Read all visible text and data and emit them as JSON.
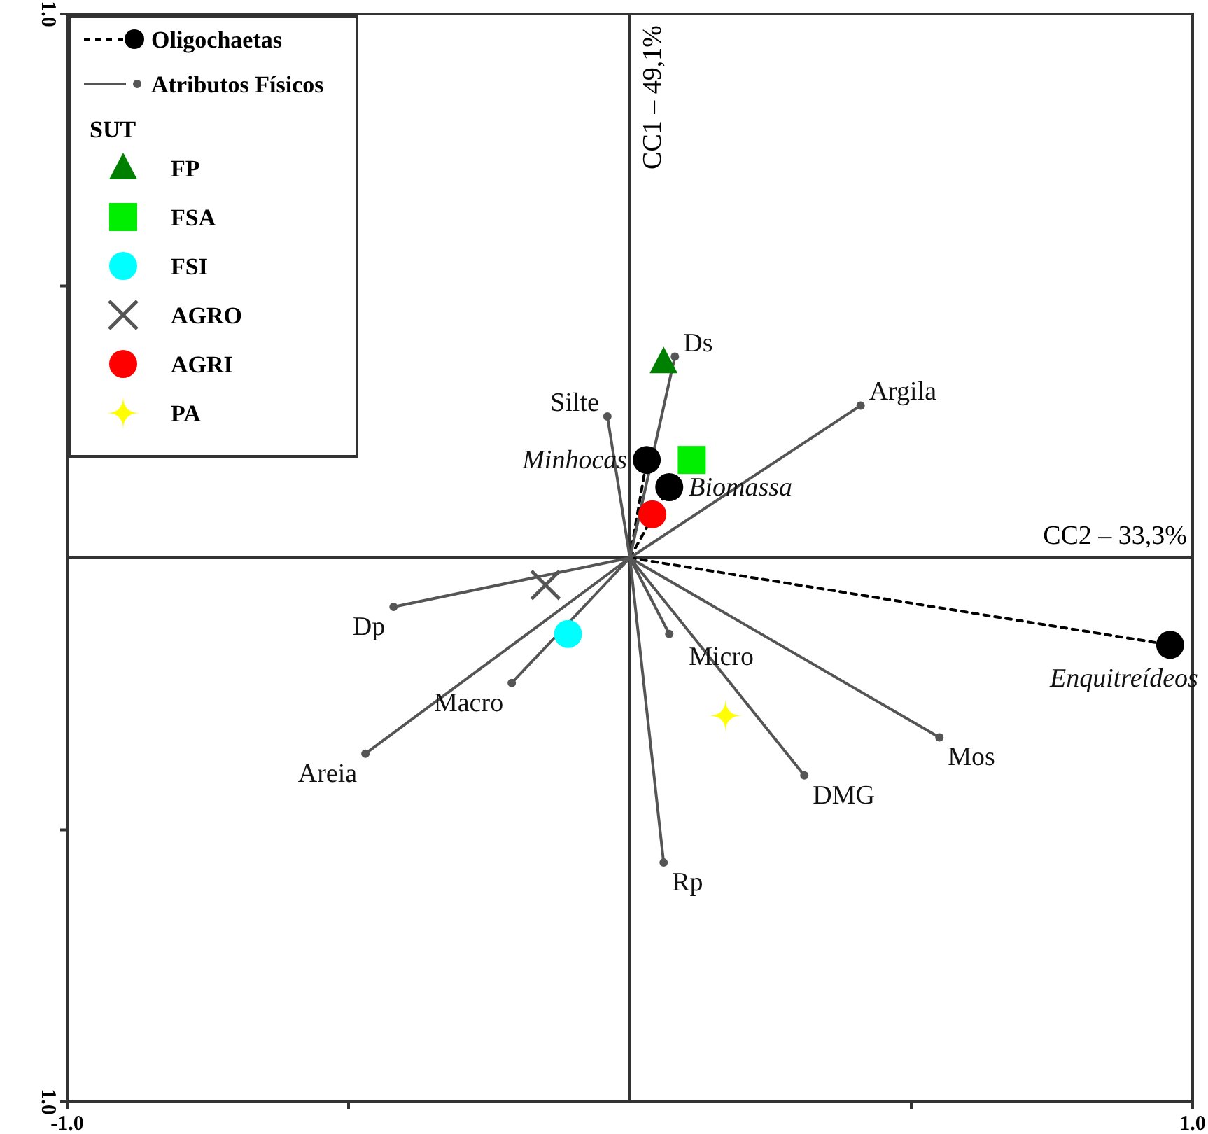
{
  "chart_data": {
    "type": "scatter",
    "xlabel": "CC2 – 33,3%",
    "ylabel": "CC1 – 49,1%",
    "xlim": [
      -1,
      1
    ],
    "ylim": [
      -1,
      1
    ],
    "xticks": [
      {
        "value": -1,
        "label": "-1.0"
      },
      {
        "value": -0.5,
        "label": null
      },
      {
        "value": 0.5,
        "label": null
      },
      {
        "value": 1,
        "label": "1.0"
      }
    ],
    "yticks": [
      {
        "value": -1,
        "label": "1.0"
      },
      {
        "value": -0.5,
        "label": null
      },
      {
        "value": 0.5,
        "label": null
      },
      {
        "value": 1,
        "label": "1.0"
      }
    ],
    "grid": false,
    "legend": "top left",
    "legend_title": "SUT",
    "series": [
      {
        "name": "Oligochaetas",
        "type": "scatter",
        "color": "#000000",
        "marker": "circle",
        "line_style": "dashed",
        "x": [
          0.03,
          0.07,
          0.96
        ],
        "values": [
          0.18,
          0.13,
          -0.16
        ]
      },
      {
        "name": "Atributos Físicos",
        "type": "scatter",
        "color": "#555555",
        "marker": "circle",
        "line_style": "solid",
        "x": [
          0.08,
          0.41,
          -0.04,
          -0.42,
          -0.47,
          -0.21,
          0.07,
          0.31,
          0.55,
          0.06
        ],
        "values": [
          0.37,
          0.28,
          0.26,
          -0.09,
          -0.36,
          -0.23,
          -0.14,
          -0.4,
          -0.33,
          -0.56
        ]
      },
      {
        "name": "FP",
        "type": "scatter",
        "color": "#008000",
        "marker": "triangle",
        "x": [
          0.06
        ],
        "values": [
          0.36
        ]
      },
      {
        "name": "FSA",
        "type": "scatter",
        "color": "#00ee00",
        "marker": "square",
        "x": [
          0.11
        ],
        "values": [
          0.18
        ]
      },
      {
        "name": "FSI",
        "type": "scatter",
        "color": "#00ffff",
        "marker": "circle",
        "x": [
          -0.11
        ],
        "values": [
          -0.14
        ]
      },
      {
        "name": "AGRO",
        "type": "scatter",
        "color": "#555555",
        "marker": "cross",
        "x": [
          -0.15
        ],
        "values": [
          -0.05
        ]
      },
      {
        "name": "AGRI",
        "type": "scatter",
        "color": "#ff0000",
        "marker": "circle",
        "x": [
          0.04
        ],
        "values": [
          0.08
        ]
      },
      {
        "name": "PA",
        "type": "scatter",
        "color": "#ffff00",
        "marker": "star",
        "x": [
          0.17
        ],
        "values": [
          -0.29
        ]
      }
    ],
    "annotations": [
      {
        "text": "Minhocas",
        "x": 0.03,
        "y": 0.18
      },
      {
        "text": "Biomassa",
        "x": 0.07,
        "y": 0.13
      },
      {
        "text": "Enquitreídeos",
        "x": 0.96,
        "y": -0.16
      },
      {
        "text": "Ds",
        "x": 0.08,
        "y": 0.37
      },
      {
        "text": "Argila",
        "x": 0.41,
        "y": 0.28
      },
      {
        "text": "Silte",
        "x": -0.04,
        "y": 0.26
      },
      {
        "text": "Dp",
        "x": -0.42,
        "y": -0.09
      },
      {
        "text": "Areia",
        "x": -0.47,
        "y": -0.36
      },
      {
        "text": "Macro",
        "x": -0.21,
        "y": -0.23
      },
      {
        "text": "Micro",
        "x": 0.07,
        "y": -0.14
      },
      {
        "text": "DMG",
        "x": 0.31,
        "y": -0.4
      },
      {
        "text": "Mos",
        "x": 0.55,
        "y": -0.33
      },
      {
        "text": "Rp",
        "x": 0.06,
        "y": -0.56
      }
    ]
  }
}
